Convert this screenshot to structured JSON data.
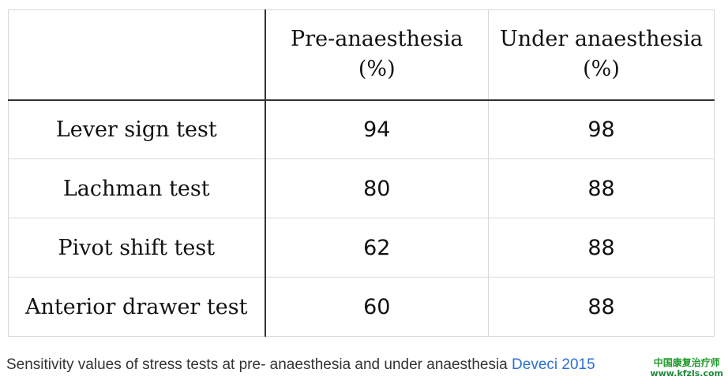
{
  "table": {
    "corner": "",
    "headers": [
      {
        "line1": "Pre-anaesthesia",
        "line2": "(%)"
      },
      {
        "line1": "Under anaesthesia",
        "line2": "(%)"
      }
    ],
    "rows": [
      {
        "test": "Lever sign test",
        "pre": "94",
        "under": "98"
      },
      {
        "test": "Lachman test",
        "pre": "80",
        "under": "88"
      },
      {
        "test": "Pivot shift test",
        "pre": "62",
        "under": "88"
      },
      {
        "test": "Anterior drawer test",
        "pre": "60",
        "under": "88"
      }
    ]
  },
  "caption": {
    "text": "Sensitivity values of stress tests at pre- anaesthesia and under anaesthesia",
    "link_text": "Deveci 2015"
  },
  "watermark": {
    "chinese": "中国康复治疗师",
    "url": "www.kfzls.com"
  },
  "colors": {
    "link": "#2a6fd6",
    "watermark": "#1f9a2a",
    "rule": "#333333",
    "grid": "#d8d8d8"
  }
}
